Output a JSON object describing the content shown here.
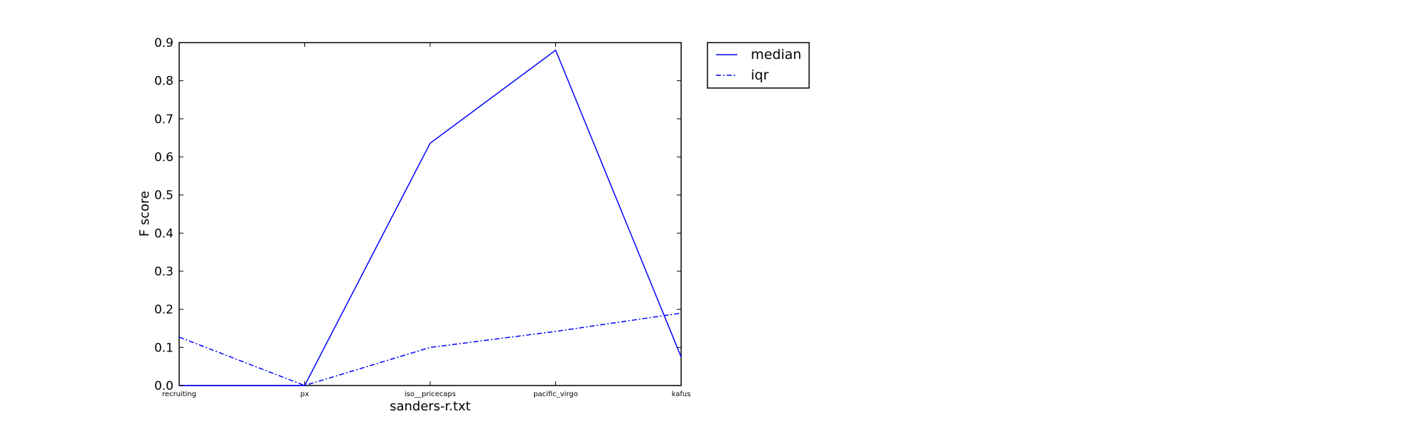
{
  "chart_data": {
    "type": "line",
    "title": "",
    "xlabel": "sanders-r.txt",
    "ylabel": "F score",
    "categories": [
      "recruiting",
      "px",
      "iso__pricecaps",
      "pacific_virgo",
      "kafus"
    ],
    "ylim": [
      0,
      0.9
    ],
    "yticks": [
      "0.0",
      "0.1",
      "0.2",
      "0.3",
      "0.4",
      "0.5",
      "0.6",
      "0.7",
      "0.8",
      "0.9"
    ],
    "grid": false,
    "legend_placement": "outside-top-right",
    "series": [
      {
        "name": "median",
        "values": [
          0.0,
          0.0,
          0.636,
          0.88,
          0.075
        ],
        "style": "solid",
        "color": "#0000ff"
      },
      {
        "name": "iqr",
        "values": [
          0.127,
          0.0,
          0.1,
          0.142,
          0.19
        ],
        "style": "dashdot",
        "color": "#0000ff"
      }
    ]
  }
}
